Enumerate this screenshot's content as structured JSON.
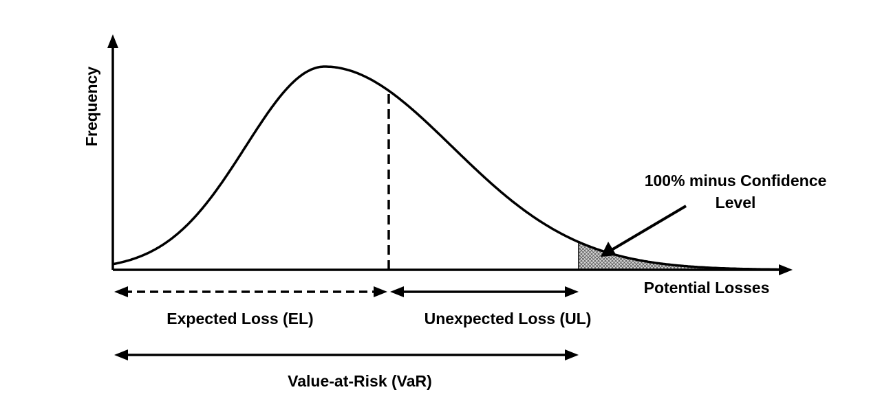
{
  "diagram": {
    "y_axis_label": "Frequency",
    "x_axis_label": "Potential Losses",
    "annotation_line1": "100% minus Confidence",
    "annotation_line2": "Level",
    "expected_loss_label": "Expected Loss (EL)",
    "unexpected_loss_label": "Unexpected Loss (UL)",
    "var_label": "Value-at-Risk (VaR)",
    "colors": {
      "stroke": "#000000",
      "tail_fill": "#bbbbbb",
      "background": "#ffffff"
    }
  }
}
